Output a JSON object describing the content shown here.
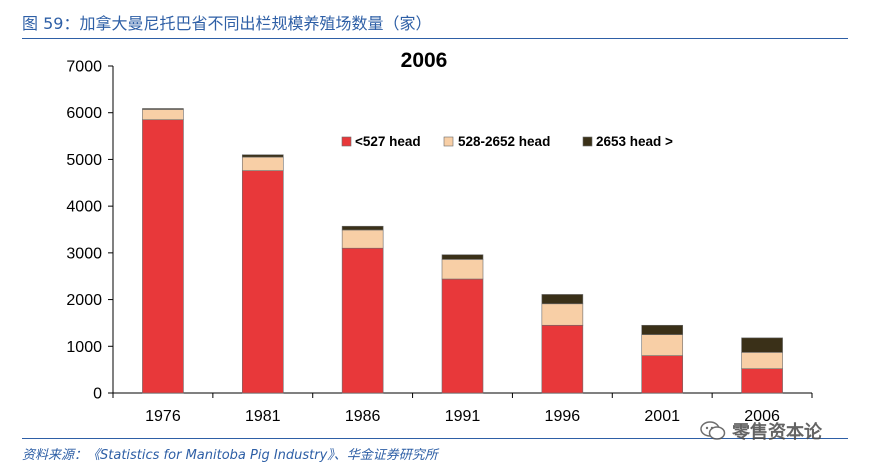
{
  "figure": {
    "title": "图 59：加拿大曼尼托巴省不同出栏规模养殖场数量（家）",
    "source": "资料来源：《Statistics for Manitoba Pig Industry》、华金证券研究所",
    "watermark": "零售资本论"
  },
  "chart_data": {
    "type": "bar",
    "stacked": true,
    "title": "2006",
    "xlabel": "",
    "ylabel": "",
    "categories": [
      "1976",
      "1981",
      "1986",
      "1991",
      "1996",
      "2001",
      "2006"
    ],
    "series": [
      {
        "name": "<527 head",
        "color": "#e8383a",
        "values": [
          5850,
          4760,
          3100,
          2440,
          1450,
          800,
          520
        ]
      },
      {
        "name": "528-2652 head",
        "color": "#f8cfa6",
        "values": [
          220,
          290,
          390,
          420,
          460,
          450,
          350
        ]
      },
      {
        "name": "2653 head >",
        "color": "#3a3018",
        "values": [
          20,
          50,
          80,
          100,
          200,
          200,
          310
        ]
      }
    ],
    "ylim": [
      0,
      7000
    ],
    "yticks": [
      0,
      1000,
      2000,
      3000,
      4000,
      5000,
      6000,
      7000
    ],
    "grid": false,
    "legend_position": "top-right"
  }
}
